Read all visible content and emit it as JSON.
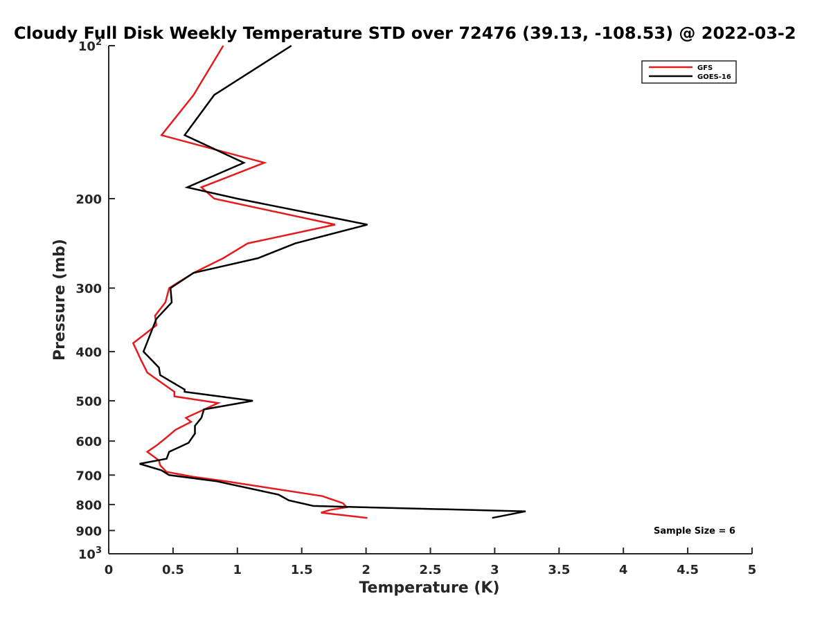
{
  "chart_data": {
    "type": "line",
    "title": "Cloudy Full Disk Weekly Temperature STD over 72476 (39.13, -108.53) @ 2022-03-2",
    "xlabel": "Temperature (K)",
    "ylabel": "Pressure (mb)",
    "xlim": [
      0,
      5
    ],
    "ylim": [
      100,
      1000
    ],
    "yscale": "log",
    "y_reversed": true,
    "xticks": [
      0,
      0.5,
      1,
      1.5,
      2,
      2.5,
      3,
      3.5,
      4,
      4.5,
      5
    ],
    "xtick_labels": [
      "0",
      "0.5",
      "1",
      "1.5",
      "2",
      "2.5",
      "3",
      "3.5",
      "4",
      "4.5",
      "5"
    ],
    "yticks": [
      200,
      300,
      400,
      500,
      600,
      700,
      800,
      900
    ],
    "ytick_labels": [
      "200",
      "300",
      "400",
      "500",
      "600",
      "700",
      "800",
      "900"
    ],
    "ytick_top": {
      "base": "10",
      "exp": "2"
    },
    "ytick_bottom": {
      "base": "10",
      "exp": "3"
    },
    "legend": {
      "placement": "top-right"
    },
    "annotation": "Sample Size = 6",
    "grid": false,
    "series": [
      {
        "name": "GFS",
        "color": "#e41a1c",
        "points": [
          [
            0.89,
            100
          ],
          [
            0.66,
            125
          ],
          [
            0.41,
            150
          ],
          [
            1.21,
            170
          ],
          [
            0.72,
            190
          ],
          [
            0.82,
            200
          ],
          [
            1.76,
            225
          ],
          [
            1.08,
            245
          ],
          [
            0.89,
            262
          ],
          [
            0.66,
            280
          ],
          [
            0.47,
            300
          ],
          [
            0.44,
            320
          ],
          [
            0.36,
            340
          ],
          [
            0.37,
            355
          ],
          [
            0.19,
            385
          ],
          [
            0.25,
            415
          ],
          [
            0.3,
            440
          ],
          [
            0.51,
            480
          ],
          [
            0.51,
            490
          ],
          [
            0.85,
            505
          ],
          [
            0.6,
            540
          ],
          [
            0.64,
            550
          ],
          [
            0.52,
            570
          ],
          [
            0.45,
            590
          ],
          [
            0.38,
            610
          ],
          [
            0.3,
            630
          ],
          [
            0.39,
            655
          ],
          [
            0.4,
            670
          ],
          [
            0.45,
            690
          ],
          [
            0.65,
            705
          ],
          [
            0.91,
            720
          ],
          [
            1.66,
            770
          ],
          [
            1.82,
            795
          ],
          [
            1.85,
            810
          ],
          [
            1.72,
            820
          ],
          [
            1.65,
            830
          ],
          [
            2.01,
            850
          ]
        ]
      },
      {
        "name": "GOES-16",
        "color": "#000000",
        "points": [
          [
            1.42,
            100
          ],
          [
            0.82,
            125
          ],
          [
            0.59,
            150
          ],
          [
            1.05,
            170
          ],
          [
            0.61,
            190
          ],
          [
            1.0,
            200
          ],
          [
            2.01,
            225
          ],
          [
            1.45,
            245
          ],
          [
            1.16,
            262
          ],
          [
            0.66,
            280
          ],
          [
            0.48,
            300
          ],
          [
            0.49,
            320
          ],
          [
            0.37,
            345
          ],
          [
            0.27,
            400
          ],
          [
            0.39,
            430
          ],
          [
            0.4,
            445
          ],
          [
            0.59,
            475
          ],
          [
            0.59,
            480
          ],
          [
            1.12,
            500
          ],
          [
            0.74,
            520
          ],
          [
            0.72,
            540
          ],
          [
            0.67,
            560
          ],
          [
            0.67,
            580
          ],
          [
            0.62,
            605
          ],
          [
            0.47,
            630
          ],
          [
            0.45,
            650
          ],
          [
            0.24,
            665
          ],
          [
            0.41,
            685
          ],
          [
            0.47,
            700
          ],
          [
            0.84,
            720
          ],
          [
            1.32,
            765
          ],
          [
            1.4,
            785
          ],
          [
            1.59,
            805
          ],
          [
            3.24,
            825
          ],
          [
            2.98,
            850
          ]
        ]
      }
    ]
  }
}
